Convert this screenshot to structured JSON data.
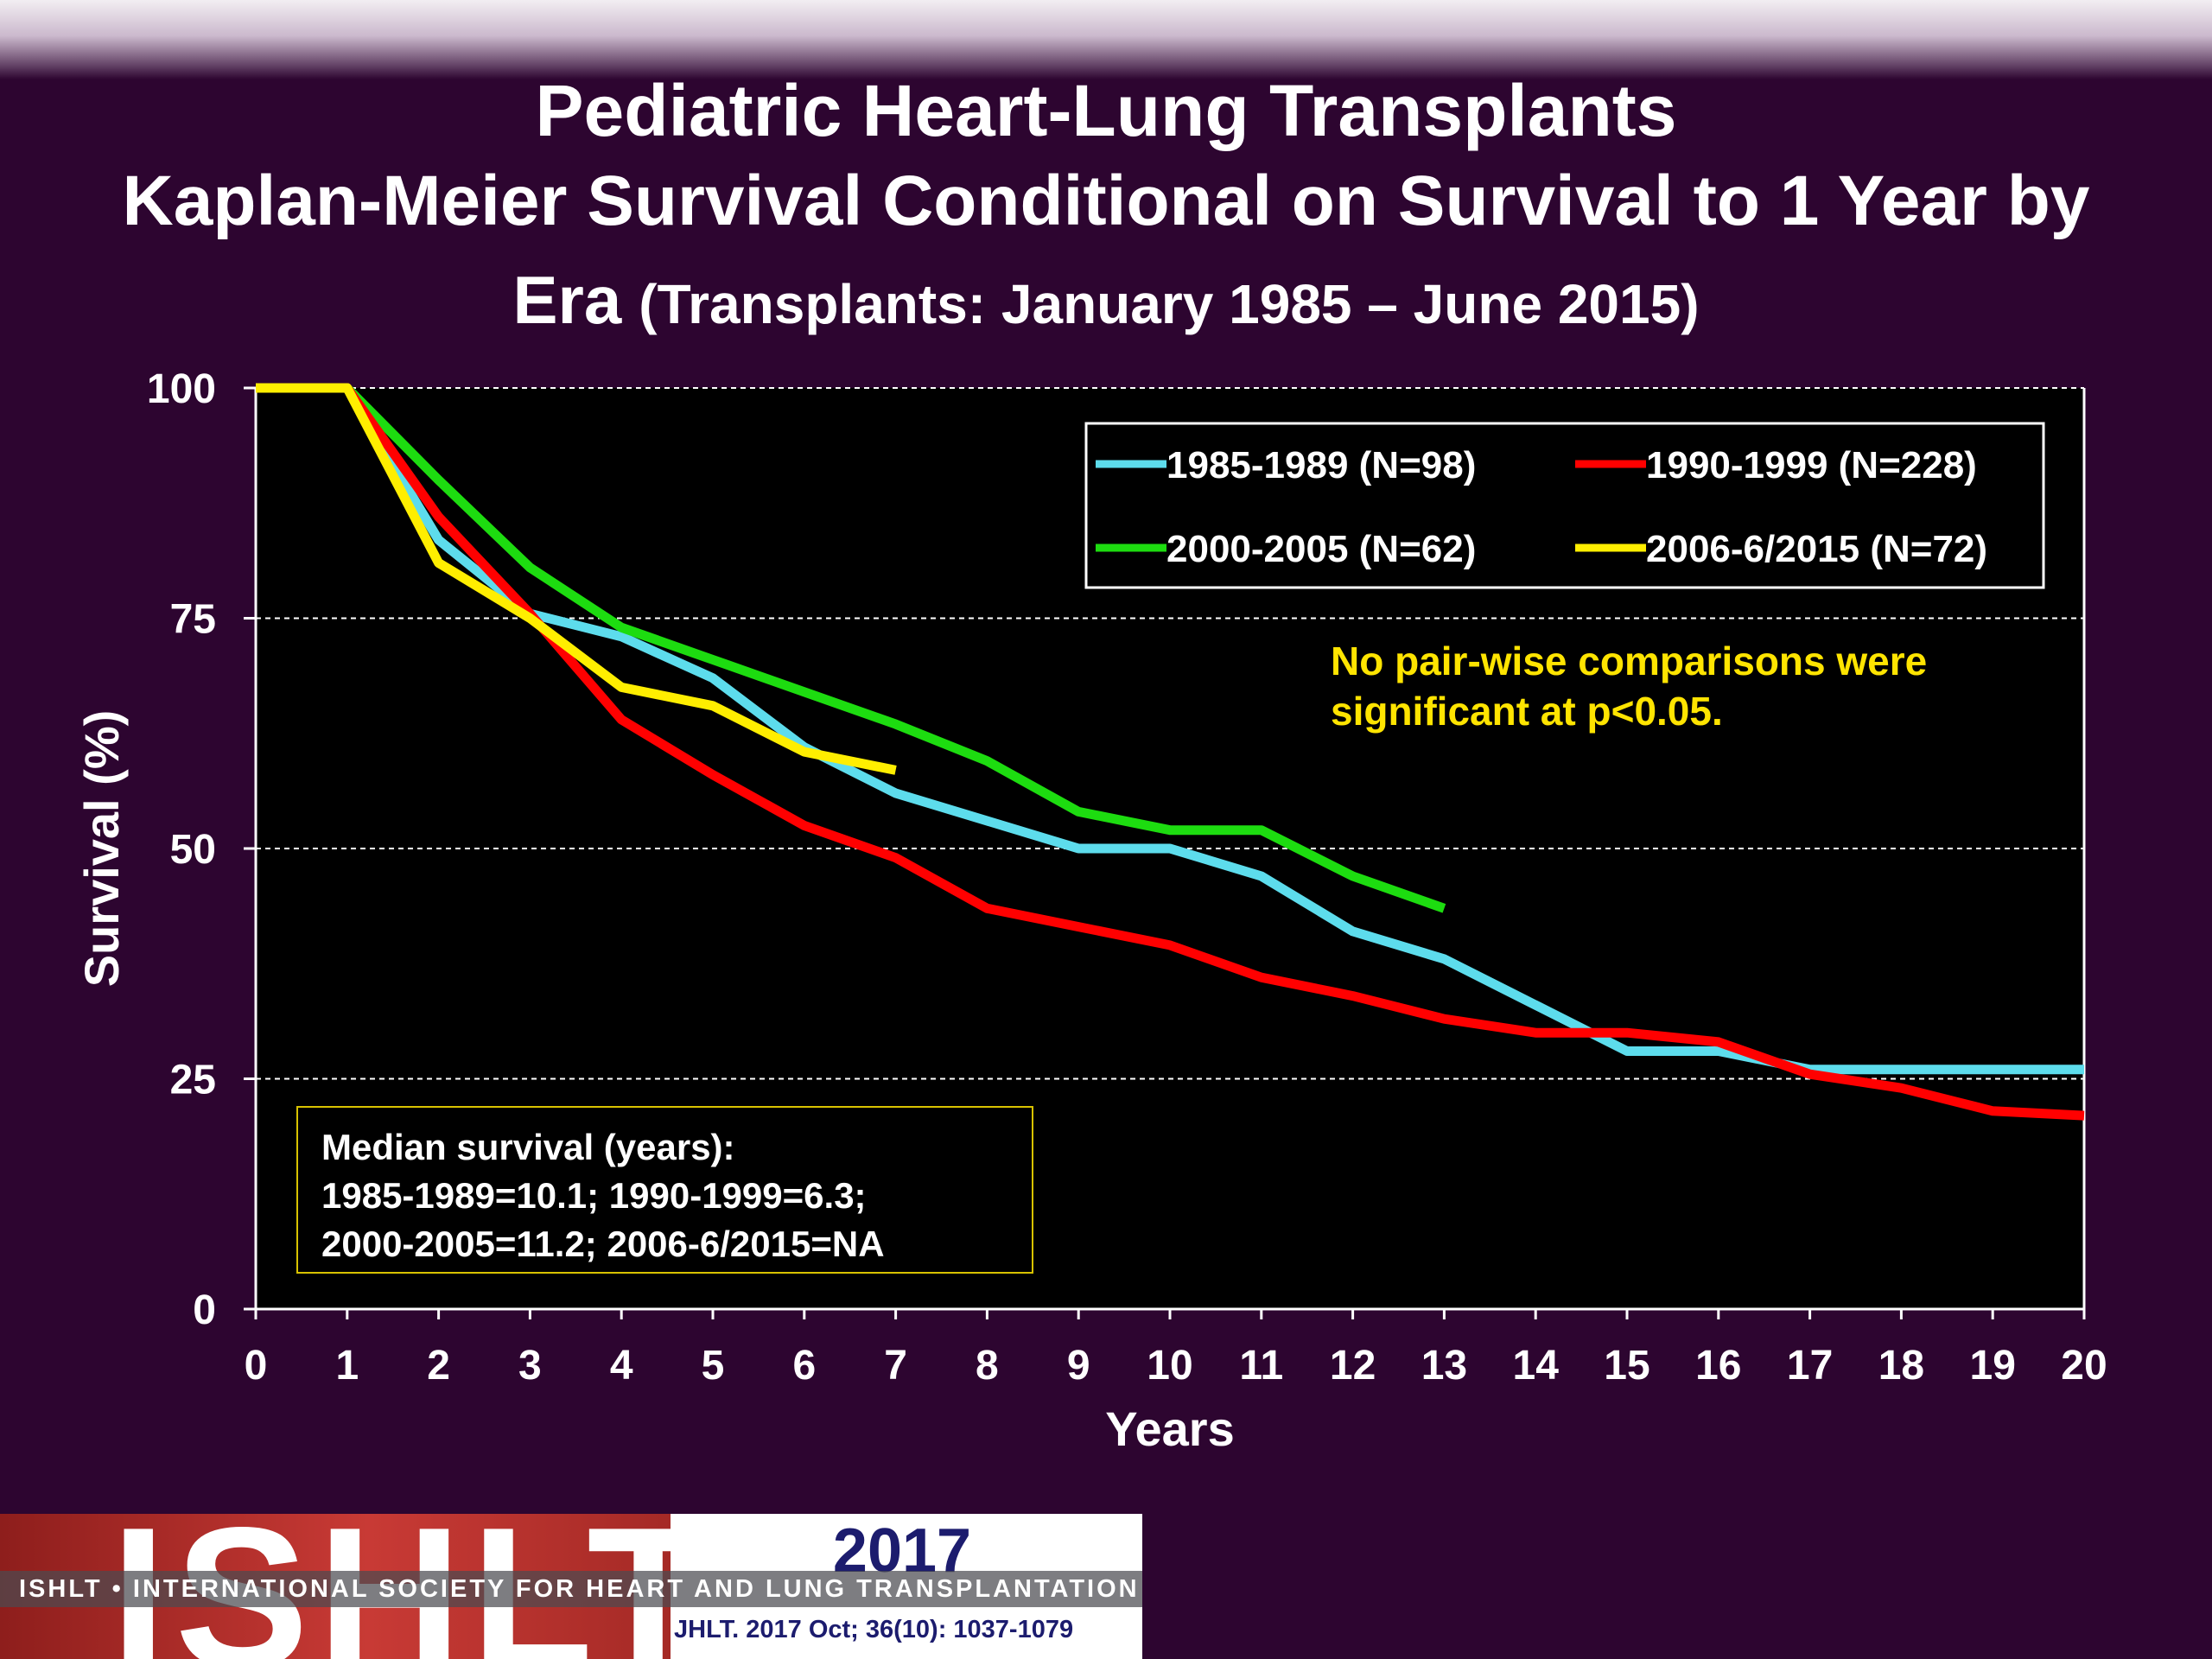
{
  "header": {
    "title": "Pediatric Heart-Lung Transplants",
    "subtitle_line1": "Kaplan-Meier Survival Conditional on Survival to 1 Year by",
    "subtitle_line2_main": "Era",
    "subtitle_line2_paren": "(Transplants: January 1985 – June 2015)"
  },
  "note": {
    "line1": "No pair-wise comparisons were",
    "line2": "significant at p<0.05."
  },
  "median_box": {
    "line1": "Median survival (years):",
    "line2": "1985-1989=10.1; 1990-1999=6.3;",
    "line3": "2000-2005=11.2; 2006-6/2015=NA"
  },
  "footer": {
    "logo_text": "ISHLT",
    "year": "2017",
    "org_name": "ISHLT • INTERNATIONAL SOCIETY FOR HEART AND LUNG TRANSPLANTATION",
    "citation": "JHLT. 2017 Oct; 36(10): 1037-1079"
  },
  "chart_data": {
    "type": "line",
    "xlabel": "Years",
    "ylabel": "Survival (%)",
    "xlim": [
      0,
      20
    ],
    "ylim": [
      0,
      100
    ],
    "xticks": [
      0,
      1,
      2,
      3,
      4,
      5,
      6,
      7,
      8,
      9,
      10,
      11,
      12,
      13,
      14,
      15,
      16,
      17,
      18,
      19,
      20
    ],
    "yticks": [
      0,
      25,
      50,
      75,
      100
    ],
    "grid": "horizontal dashed at 25, 50, 75, 100",
    "legend_position": "top-right",
    "background": "#000000",
    "series": [
      {
        "name": "1985-1989 (N=98)",
        "color": "#5ddcec",
        "points": [
          [
            0,
            100
          ],
          [
            1,
            100
          ],
          [
            2,
            83.5
          ],
          [
            3,
            75.5
          ],
          [
            4,
            73
          ],
          [
            5,
            68.5
          ],
          [
            6,
            61
          ],
          [
            7,
            56
          ],
          [
            8,
            53
          ],
          [
            9,
            50
          ],
          [
            10,
            50
          ],
          [
            11,
            47
          ],
          [
            12,
            41
          ],
          [
            13,
            38
          ],
          [
            14,
            33
          ],
          [
            15,
            28
          ],
          [
            16,
            28
          ],
          [
            17,
            26
          ],
          [
            18,
            26
          ],
          [
            19,
            26
          ],
          [
            20,
            26
          ]
        ]
      },
      {
        "name": "1990-1999 (N=228)",
        "color": "#ff0000",
        "points": [
          [
            0,
            100
          ],
          [
            1,
            100
          ],
          [
            2,
            86
          ],
          [
            3,
            75.5
          ],
          [
            4,
            64
          ],
          [
            5,
            58
          ],
          [
            6,
            52.5
          ],
          [
            7,
            49
          ],
          [
            8,
            43.5
          ],
          [
            9,
            41.5
          ],
          [
            10,
            39.5
          ],
          [
            11,
            36
          ],
          [
            12,
            34
          ],
          [
            13,
            31.5
          ],
          [
            14,
            30
          ],
          [
            15,
            30
          ],
          [
            16,
            29
          ],
          [
            17,
            25.5
          ],
          [
            18,
            24
          ],
          [
            19,
            21.5
          ],
          [
            20,
            21
          ]
        ]
      },
      {
        "name": "2000-2005 (N=62)",
        "color": "#1ddc10",
        "points": [
          [
            0,
            100
          ],
          [
            1,
            100
          ],
          [
            2,
            90
          ],
          [
            3,
            80.5
          ],
          [
            4,
            74
          ],
          [
            5,
            70.5
          ],
          [
            6,
            67
          ],
          [
            7,
            63.5
          ],
          [
            8,
            59.5
          ],
          [
            9,
            54
          ],
          [
            10,
            52
          ],
          [
            11,
            52
          ],
          [
            12,
            47
          ],
          [
            13,
            43.5
          ]
        ]
      },
      {
        "name": "2006-6/2015 (N=72)",
        "color": "#ffee00",
        "points": [
          [
            0,
            100
          ],
          [
            1,
            100
          ],
          [
            2,
            81
          ],
          [
            3,
            75
          ],
          [
            4,
            67.5
          ],
          [
            5,
            65.5
          ],
          [
            6,
            60.5
          ],
          [
            7,
            58.5
          ]
        ]
      }
    ]
  }
}
